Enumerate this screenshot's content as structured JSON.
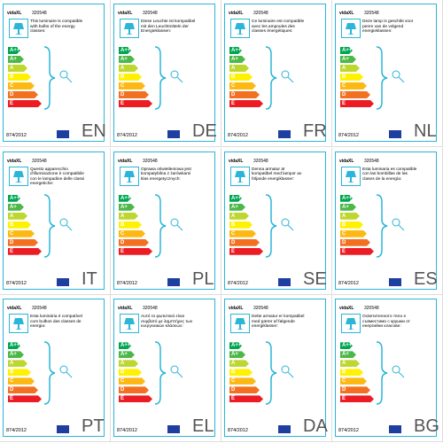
{
  "brand": "vidaXL",
  "code": "320548",
  "regulation": "874/2012",
  "classes": [
    "A++",
    "A+",
    "A",
    "B",
    "C",
    "D",
    "E"
  ],
  "cards": [
    {
      "lang": "EN",
      "text": "This luminaire is compatible with bulbs of the energy classes:"
    },
    {
      "lang": "DE",
      "text": "Diese Leuchte ist kompatibel mit den Leuchtmitteln der Energieklassen:"
    },
    {
      "lang": "FR",
      "text": "Ce luminaire est compatible avec les ampoules des classes énergétiques:"
    },
    {
      "lang": "NL",
      "text": "Deze lamp is geschikt voor peren van de volgend energieklassen:"
    },
    {
      "lang": "IT",
      "text": "Questo apparecchio d'illuminazione è compatibile con le lampadine delle classi energetiche:"
    },
    {
      "lang": "PL",
      "text": "Oprawa oświetleniowa jest kompatybilna z żarówkami klas energetycznych:"
    },
    {
      "lang": "SE",
      "text": "Denna armatur är kompatibel med lampor av följande energiklasser:"
    },
    {
      "lang": "ES",
      "text": "Esta luminaria es compatible con las bombillas de las clases de la energía:"
    },
    {
      "lang": "PT",
      "text": "Esta luminária é compatível com bulbos das classes de energia:"
    },
    {
      "lang": "EL",
      "text": "Αυτό το φωτιστικό είναι συμβατό με λαμπτήρες των ενεργειακών κλάσεων:"
    },
    {
      "lang": "DA",
      "text": "Dette armatur er kompatibel med pærer af følgende energiklasser:"
    },
    {
      "lang": "BG",
      "text": "Осветителното тяло е съвместимо с крушки от енергийни класове:"
    }
  ]
}
